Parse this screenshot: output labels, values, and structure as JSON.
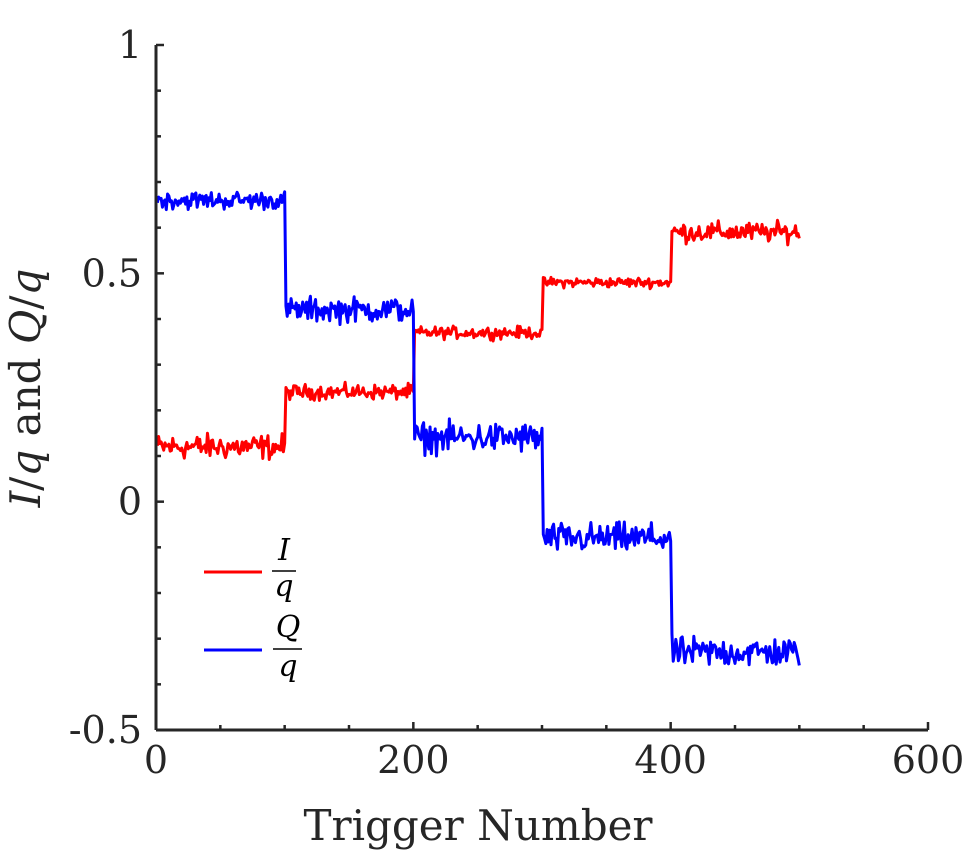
{
  "chart_data": {
    "type": "line",
    "xlabel": "Trigger Number",
    "ylabel_parts": [
      "I",
      "/",
      "q",
      " and ",
      "Q",
      "/",
      "q"
    ],
    "xlim": [
      0,
      600
    ],
    "ylim": [
      -0.5,
      1
    ],
    "xticks": [
      0,
      200,
      400,
      600
    ],
    "xtick_labels": [
      "0",
      "200",
      "400",
      "600"
    ],
    "yticks": [
      -0.5,
      0,
      0.5,
      1
    ],
    "ytick_labels": [
      "-0.5",
      "0",
      "0.5",
      "1"
    ],
    "legend": {
      "position": "lower-left",
      "entries": [
        {
          "numerator": "I",
          "denominator": "q"
        },
        {
          "numerator": "Q",
          "denominator": "q"
        }
      ]
    },
    "series": [
      {
        "name": "I/q",
        "color": "#ff0000",
        "segments": [
          {
            "x_start": 1,
            "x_end": 100,
            "mean": 0.12,
            "noise": 0.025
          },
          {
            "x_start": 101,
            "x_end": 200,
            "mean": 0.24,
            "noise": 0.015
          },
          {
            "x_start": 201,
            "x_end": 300,
            "mean": 0.37,
            "noise": 0.012
          },
          {
            "x_start": 301,
            "x_end": 400,
            "mean": 0.48,
            "noise": 0.01
          },
          {
            "x_start": 401,
            "x_end": 500,
            "mean": 0.59,
            "noise": 0.02
          }
        ]
      },
      {
        "name": "Q/q",
        "color": "#0000ff",
        "segments": [
          {
            "x_start": 1,
            "x_end": 100,
            "mean": 0.66,
            "noise": 0.018
          },
          {
            "x_start": 101,
            "x_end": 200,
            "mean": 0.42,
            "noise": 0.025
          },
          {
            "x_start": 201,
            "x_end": 300,
            "mean": 0.14,
            "noise": 0.03
          },
          {
            "x_start": 301,
            "x_end": 400,
            "mean": -0.08,
            "noise": 0.03
          },
          {
            "x_start": 401,
            "x_end": 500,
            "mean": -0.33,
            "noise": 0.03
          }
        ]
      }
    ]
  }
}
